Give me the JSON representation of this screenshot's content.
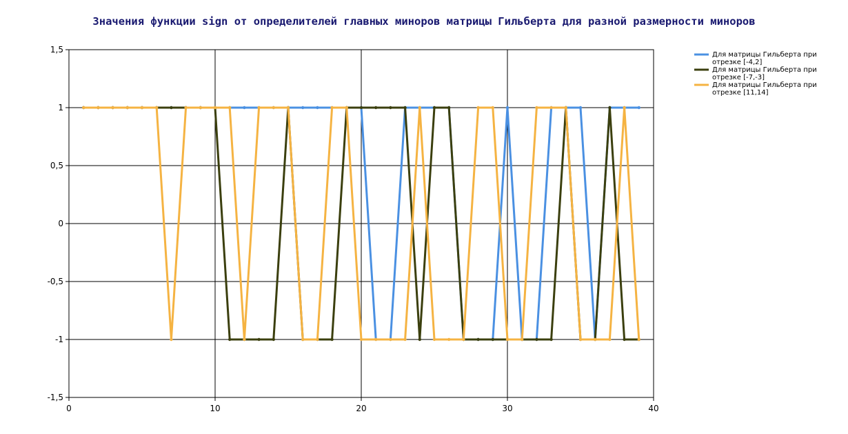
{
  "chart_data": {
    "type": "line",
    "title": "Значения функции sign от определителей главных миноров матрицы Гильберта для разной размерности миноров",
    "xlabel": "",
    "ylabel": "",
    "xlim": [
      0,
      40
    ],
    "ylim": [
      -1.5,
      1.5
    ],
    "x_ticks": [
      0,
      10,
      20,
      30,
      40
    ],
    "y_ticks": [
      1.5,
      1,
      0.5,
      0,
      -0.5,
      -1,
      -1.5
    ],
    "x_tick_labels": [
      "0",
      "10",
      "20",
      "30",
      "40"
    ],
    "y_tick_labels": [
      "1,5",
      "1",
      "0,5",
      "0",
      "-0,5",
      "-1",
      "-1,5"
    ],
    "grid": true,
    "legend_position": "top-right-outside",
    "x": [
      1,
      2,
      3,
      4,
      5,
      6,
      7,
      8,
      9,
      10,
      11,
      12,
      13,
      14,
      15,
      16,
      17,
      18,
      19,
      20,
      21,
      22,
      23,
      24,
      25,
      26,
      27,
      28,
      29,
      30,
      31,
      32,
      33,
      34,
      35,
      36,
      37,
      38,
      39
    ],
    "series": [
      {
        "name": "Для матрицы Гильберта при отрезке [-4,2]",
        "legend_lines": [
          "Для матрицы Гильберта при",
          "отрезке [-4,2]"
        ],
        "color": "#4A90E2",
        "values": [
          1,
          1,
          1,
          1,
          1,
          1,
          1,
          1,
          1,
          1,
          1,
          1,
          1,
          1,
          1,
          1,
          1,
          1,
          1,
          1,
          -1,
          -1,
          1,
          1,
          1,
          1,
          -1,
          -1,
          -1,
          1,
          -1,
          -1,
          1,
          1,
          1,
          -1,
          1,
          1,
          1
        ]
      },
      {
        "name": "Для матрицы Гильберта при отрезке [-7,-3]",
        "legend_lines": [
          "Для матрицы Гильберта при",
          "отрезке [-7,-3]"
        ],
        "color": "#3B3F0E",
        "values": [
          1,
          1,
          1,
          1,
          1,
          1,
          1,
          1,
          1,
          1,
          -1,
          -1,
          -1,
          -1,
          1,
          -1,
          -1,
          -1,
          1,
          1,
          1,
          1,
          1,
          -1,
          1,
          1,
          -1,
          -1,
          -1,
          -1,
          -1,
          -1,
          -1,
          1,
          -1,
          -1,
          1,
          -1,
          -1
        ]
      },
      {
        "name": "Для матрицы Гильберта при отрезке [11,14]",
        "legend_lines": [
          "Для матрицы Гильберта при",
          "отрезке [11,14]"
        ],
        "color": "#F5B342",
        "values": [
          1,
          1,
          1,
          1,
          1,
          1,
          -1,
          1,
          1,
          1,
          1,
          -1,
          1,
          1,
          1,
          -1,
          -1,
          1,
          1,
          -1,
          -1,
          -1,
          -1,
          1,
          -1,
          -1,
          -1,
          1,
          1,
          -1,
          -1,
          1,
          1,
          1,
          -1,
          -1,
          -1,
          1,
          -1
        ]
      }
    ]
  }
}
